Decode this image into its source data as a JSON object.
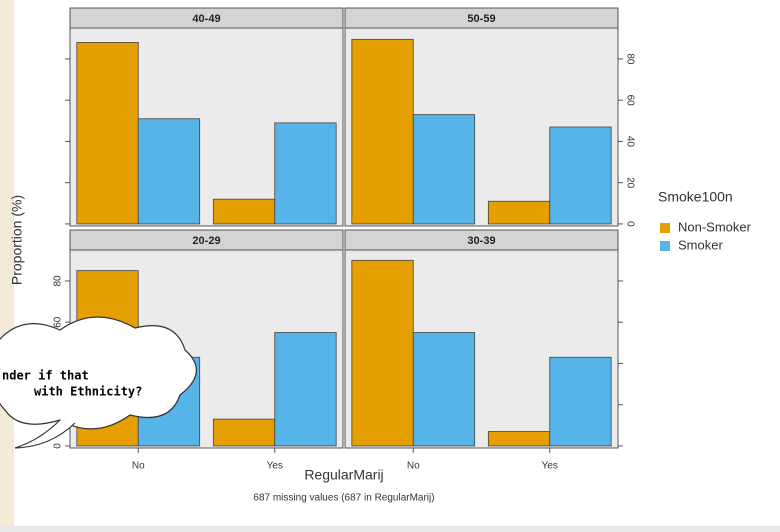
{
  "chart_data": {
    "type": "bar",
    "categories": [
      "No",
      "Yes"
    ],
    "series": [
      {
        "name": "Non-Smoker",
        "color": "#E69F00"
      },
      {
        "name": "Smoker",
        "color": "#56B4E9"
      }
    ],
    "panels": [
      {
        "title": "40-49",
        "series": [
          {
            "values": [
              88,
              12
            ]
          },
          {
            "values": [
              51,
              49
            ]
          }
        ]
      },
      {
        "title": "50-59",
        "series": [
          {
            "values": [
              89.5,
              11
            ]
          },
          {
            "values": [
              53,
              47
            ]
          }
        ]
      },
      {
        "title": "20-29",
        "series": [
          {
            "values": [
              85,
              13
            ]
          },
          {
            "values": [
              43,
              55
            ]
          }
        ]
      },
      {
        "title": "30-39",
        "series": [
          {
            "values": [
              90,
              7
            ]
          },
          {
            "values": [
              55,
              43
            ]
          }
        ]
      }
    ],
    "ylim": [
      -1,
      95
    ],
    "yticks": [
      0,
      20,
      40,
      60,
      80
    ],
    "legend_title": "Smoke100n",
    "x_label": "RegularMarij",
    "y_label": "Proportion (%)",
    "subtitle": "687 missing values (687 in RegularMarij)"
  },
  "annotation": [
    "nder if that",
    "with Ethnicity?"
  ]
}
